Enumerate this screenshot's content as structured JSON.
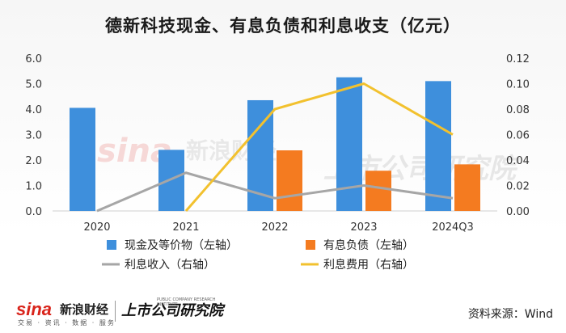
{
  "title": "德新科技现金、有息负债和利息收支（亿元）",
  "source": "资料来源：Wind",
  "brand": {
    "sina_logo": "sina",
    "sina_cn": "新浪财经",
    "sina_sub": "交易 · 资讯 · 数据 · 服务",
    "institute": "上市公司研究院",
    "institute_en": "PUBLIC COMPANY RESEARCH INSTITUTE"
  },
  "colors": {
    "cash": "#3e8fdc",
    "debt": "#f47b20",
    "income": "#a6a6a6",
    "expense": "#f2c12e"
  },
  "chart_data": {
    "type": "bar",
    "categories": [
      "2020",
      "2021",
      "2022",
      "2023",
      "2024Q3"
    ],
    "left_axis": {
      "ylim": [
        0,
        6.0
      ],
      "ticks": [
        "0.0",
        "1.0",
        "2.0",
        "3.0",
        "4.0",
        "5.0",
        "6.0"
      ]
    },
    "right_axis": {
      "ylim": [
        0,
        0.12
      ],
      "ticks": [
        "0.00",
        "0.02",
        "0.04",
        "0.06",
        "0.08",
        "0.10",
        "0.12"
      ]
    },
    "series": [
      {
        "name": "现金及等价物（左轴）",
        "kind": "bar",
        "axis": "left",
        "values": [
          4.05,
          2.4,
          4.35,
          5.25,
          5.1
        ]
      },
      {
        "name": "有息负债（左轴）",
        "kind": "bar",
        "axis": "left",
        "values": [
          0,
          0,
          2.38,
          1.58,
          1.83
        ]
      },
      {
        "name": "利息收入（右轴）",
        "kind": "line",
        "axis": "right",
        "values": [
          0.0,
          0.03,
          0.01,
          0.02,
          0.01
        ]
      },
      {
        "name": "利息费用（右轴）",
        "kind": "line",
        "axis": "right",
        "values": [
          null,
          0.0,
          0.08,
          0.1,
          0.06
        ]
      }
    ]
  }
}
